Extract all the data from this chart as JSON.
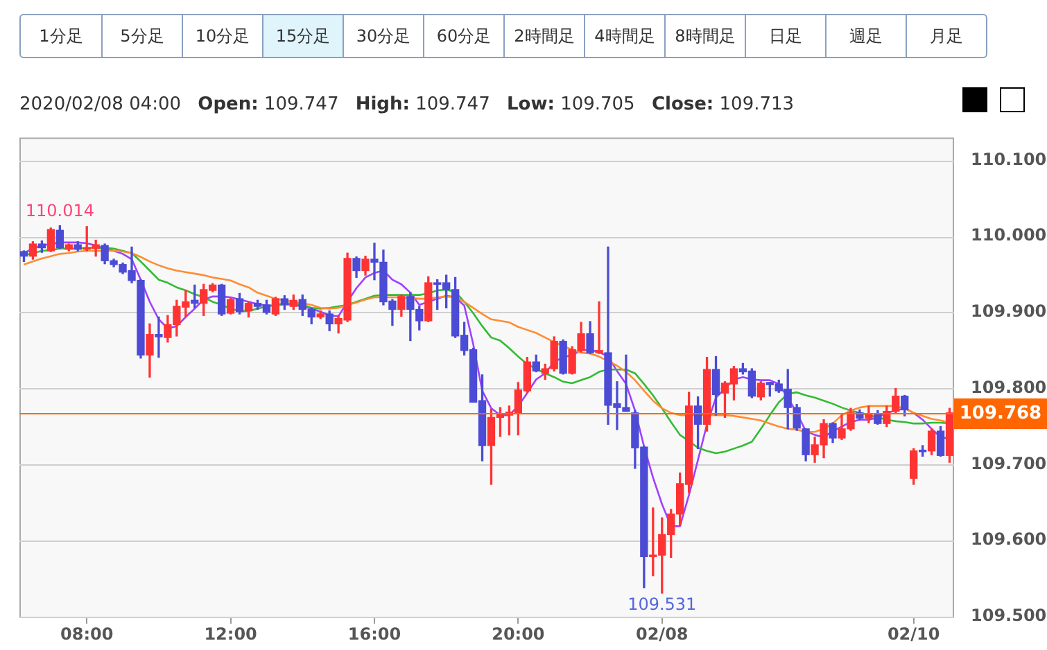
{
  "chart_data": {
    "type": "candlestick",
    "subtitle": "2020/02/08 04:00 Open: 109.747 High: 109.747 Low: 109.705 Close: 109.713",
    "annotations": [
      "1分足",
      "5分足",
      "10分足",
      "15分足",
      "30分足",
      "60分足",
      "2時間足",
      "4時間足",
      "8時間足",
      "日足",
      "週足",
      "月足",
      {
        "text": "110.014",
        "y": 110.014
      },
      {
        "text": "109.531",
        "y": 109.531
      }
    ],
    "categories": [
      null,
      null,
      null,
      null,
      null,
      null,
      null,
      "08:00",
      null,
      null,
      null,
      null,
      null,
      null,
      null,
      null,
      null,
      null,
      null,
      null,
      null,
      null,
      null,
      "12:00",
      null,
      null,
      null,
      null,
      null,
      null,
      null,
      null,
      null,
      null,
      null,
      null,
      null,
      null,
      null,
      "16:00",
      null,
      null,
      null,
      null,
      null,
      null,
      null,
      null,
      null,
      null,
      null,
      null,
      null,
      null,
      null,
      "20:00",
      null,
      null,
      null,
      null,
      null,
      null,
      null,
      null,
      null,
      null,
      null,
      null,
      null,
      null,
      null,
      "02/08",
      null,
      null,
      null,
      null,
      null,
      null,
      null,
      null,
      null,
      null,
      null,
      null,
      null,
      null,
      null,
      null,
      null,
      null,
      null,
      null,
      null,
      null,
      null,
      null,
      null,
      null,
      null,
      "02/10",
      null,
      null,
      null,
      null
    ],
    "ohlc": [
      [
        109.98,
        109.981,
        109.967,
        109.974
      ],
      [
        109.974,
        109.993,
        109.97,
        109.99
      ],
      [
        109.99,
        109.994,
        109.979,
        109.985
      ],
      [
        109.981,
        110.011,
        109.98,
        110.009
      ],
      [
        110.008,
        110.014,
        109.984,
        109.985
      ],
      [
        109.983,
        109.99,
        109.981,
        109.989
      ],
      [
        109.989,
        109.993,
        109.981,
        109.983
      ],
      [
        109.983,
        110.013,
        109.981,
        109.984
      ],
      [
        109.984,
        109.995,
        109.974,
        109.989
      ],
      [
        109.988,
        109.99,
        109.964,
        109.968
      ],
      [
        109.968,
        109.97,
        109.96,
        109.963
      ],
      [
        109.963,
        109.965,
        109.951,
        109.953
      ],
      [
        109.955,
        109.986,
        109.939,
        109.942
      ],
      [
        109.942,
        109.943,
        109.84,
        109.844
      ],
      [
        109.844,
        109.885,
        109.815,
        109.871
      ],
      [
        109.871,
        109.894,
        109.841,
        109.868
      ],
      [
        109.867,
        109.896,
        109.861,
        109.884
      ],
      [
        109.884,
        109.916,
        109.869,
        109.908
      ],
      [
        109.907,
        109.929,
        109.895,
        109.914
      ],
      [
        109.916,
        109.936,
        109.906,
        109.912
      ],
      [
        109.912,
        109.937,
        109.896,
        109.93
      ],
      [
        109.929,
        109.938,
        109.927,
        109.936
      ],
      [
        109.936,
        109.937,
        109.896,
        109.898
      ],
      [
        109.899,
        109.919,
        109.898,
        109.917
      ],
      [
        109.918,
        109.925,
        109.898,
        109.901
      ],
      [
        109.902,
        109.914,
        109.894,
        109.912
      ],
      [
        109.912,
        109.916,
        109.904,
        109.908
      ],
      [
        109.91,
        109.916,
        109.898,
        109.9
      ],
      [
        109.898,
        109.92,
        109.896,
        109.918
      ],
      [
        109.918,
        109.922,
        109.904,
        109.91
      ],
      [
        109.908,
        109.923,
        109.904,
        109.916
      ],
      [
        109.917,
        109.923,
        109.896,
        109.904
      ],
      [
        109.904,
        109.906,
        109.885,
        109.894
      ],
      [
        109.894,
        109.902,
        109.892,
        109.898
      ],
      [
        109.898,
        109.902,
        109.876,
        109.885
      ],
      [
        109.885,
        109.896,
        109.873,
        109.892
      ],
      [
        109.89,
        109.978,
        109.888,
        109.971
      ],
      [
        109.971,
        109.973,
        109.946,
        109.955
      ],
      [
        109.955,
        109.974,
        109.949,
        109.97
      ],
      [
        109.97,
        109.991,
        109.943,
        109.966
      ],
      [
        109.966,
        109.982,
        109.91,
        109.914
      ],
      [
        109.915,
        109.917,
        109.883,
        109.904
      ],
      [
        109.904,
        109.923,
        109.895,
        109.921
      ],
      [
        109.921,
        109.926,
        109.863,
        109.904
      ],
      [
        109.904,
        109.908,
        109.877,
        109.889
      ],
      [
        109.889,
        109.947,
        109.888,
        109.939
      ],
      [
        109.939,
        109.943,
        109.904,
        109.937
      ],
      [
        109.939,
        109.949,
        109.906,
        109.93
      ],
      [
        109.93,
        109.946,
        109.867,
        109.869
      ],
      [
        109.87,
        109.887,
        109.844,
        109.85
      ],
      [
        109.851,
        109.853,
        109.782,
        109.782
      ],
      [
        109.784,
        109.818,
        109.705,
        109.725
      ],
      [
        109.725,
        109.773,
        109.674,
        109.762
      ],
      [
        109.762,
        109.775,
        109.737,
        109.767
      ],
      [
        109.765,
        109.777,
        109.739,
        109.769
      ],
      [
        109.768,
        109.808,
        109.739,
        109.798
      ],
      [
        109.797,
        109.841,
        109.795,
        109.835
      ],
      [
        109.835,
        109.844,
        109.822,
        109.823
      ],
      [
        109.82,
        109.832,
        109.812,
        109.826
      ],
      [
        109.826,
        109.868,
        109.823,
        109.862
      ],
      [
        109.862,
        109.864,
        109.819,
        109.82
      ],
      [
        109.82,
        109.855,
        109.819,
        109.851
      ],
      [
        109.85,
        109.887,
        109.848,
        109.872
      ],
      [
        109.872,
        109.888,
        109.846,
        109.847
      ],
      [
        109.847,
        109.914,
        109.846,
        109.85
      ],
      [
        109.847,
        109.986,
        109.753,
        109.778
      ],
      [
        109.78,
        109.809,
        109.746,
        109.775
      ],
      [
        109.775,
        109.844,
        109.77,
        109.77
      ],
      [
        109.768,
        109.771,
        109.695,
        109.722
      ],
      [
        109.723,
        109.724,
        109.538,
        109.579
      ],
      [
        109.579,
        109.643,
        109.554,
        109.581
      ],
      [
        109.581,
        109.63,
        109.531,
        109.608
      ],
      [
        109.608,
        109.641,
        109.578,
        109.635
      ],
      [
        109.635,
        109.689,
        109.62,
        109.675
      ],
      [
        109.674,
        109.795,
        109.663,
        109.777
      ],
      [
        109.777,
        109.789,
        109.721,
        109.753
      ],
      [
        109.753,
        109.841,
        109.744,
        109.825
      ],
      [
        109.825,
        109.842,
        109.765,
        109.792
      ],
      [
        109.794,
        109.809,
        109.762,
        109.807
      ],
      [
        109.806,
        109.829,
        109.785,
        109.826
      ],
      [
        109.826,
        109.833,
        109.819,
        109.822
      ],
      [
        109.823,
        109.826,
        109.788,
        109.79
      ],
      [
        109.789,
        109.809,
        109.785,
        109.807
      ],
      [
        109.808,
        109.808,
        109.79,
        109.805
      ],
      [
        109.806,
        109.811,
        109.795,
        109.797
      ],
      [
        109.799,
        109.825,
        109.747,
        109.775
      ],
      [
        109.775,
        109.779,
        109.745,
        109.748
      ],
      [
        109.747,
        109.747,
        109.705,
        109.713
      ],
      [
        109.713,
        109.736,
        109.703,
        109.726
      ],
      [
        109.726,
        109.759,
        109.709,
        109.754
      ],
      [
        109.754,
        109.755,
        109.729,
        109.735
      ],
      [
        109.735,
        109.765,
        109.733,
        109.747
      ],
      [
        109.747,
        109.774,
        109.745,
        109.768
      ],
      [
        109.768,
        109.772,
        109.759,
        109.761
      ],
      [
        109.761,
        109.777,
        109.755,
        109.767
      ],
      [
        109.767,
        109.771,
        109.753,
        109.754
      ],
      [
        109.754,
        109.777,
        109.75,
        109.77
      ],
      [
        109.77,
        109.8,
        109.768,
        109.79
      ],
      [
        109.79,
        109.791,
        109.764,
        109.772
      ],
      [
        109.682,
        109.721,
        109.674,
        109.718
      ],
      [
        109.719,
        109.725,
        109.711,
        109.717
      ],
      [
        109.718,
        109.747,
        109.713,
        109.744
      ],
      [
        109.744,
        109.75,
        109.711,
        109.712
      ],
      [
        109.712,
        109.774,
        109.703,
        109.768
      ]
    ],
    "colors": [
      "#4b4bd6",
      "#ff3333",
      "#4b4bd6",
      "#ff3333",
      "#4b4bd6",
      "#ff3333",
      "#4b4bd6",
      "#ff3333",
      "#ff3333",
      "#4b4bd6",
      "#4b4bd6",
      "#4b4bd6",
      "#4b4bd6",
      "#4b4bd6",
      "#ff3333",
      "#4b4bd6",
      "#ff3333",
      "#ff3333",
      "#ff3333",
      "#4b4bd6",
      "#ff3333",
      "#ff3333",
      "#4b4bd6",
      "#ff3333",
      "#4b4bd6",
      "#ff3333",
      "#4b4bd6",
      "#4b4bd6",
      "#ff3333",
      "#4b4bd6",
      "#ff3333",
      "#4b4bd6",
      "#4b4bd6",
      "#ff3333",
      "#4b4bd6",
      "#ff3333",
      "#ff3333",
      "#4b4bd6",
      "#ff3333",
      "#4b4bd6",
      "#4b4bd6",
      "#4b4bd6",
      "#ff3333",
      "#4b4bd6",
      "#4b4bd6",
      "#ff3333",
      "#4b4bd6",
      "#4b4bd6",
      "#4b4bd6",
      "#4b4bd6",
      "#4b4bd6",
      "#4b4bd6",
      "#ff3333",
      "#ff3333",
      "#ff3333",
      "#ff3333",
      "#ff3333",
      "#4b4bd6",
      "#ff3333",
      "#ff3333",
      "#4b4bd6",
      "#ff3333",
      "#ff3333",
      "#4b4bd6",
      "#ff3333",
      "#4b4bd6",
      "#4b4bd6",
      "#4b4bd6",
      "#4b4bd6",
      "#4b4bd6",
      "#ff3333",
      "#ff3333",
      "#ff3333",
      "#ff3333",
      "#ff3333",
      "#4b4bd6",
      "#ff3333",
      "#4b4bd6",
      "#ff3333",
      "#ff3333",
      "#4b4bd6",
      "#4b4bd6",
      "#ff3333",
      "#4b4bd6",
      "#4b4bd6",
      "#4b4bd6",
      "#4b4bd6",
      "#4b4bd6",
      "#ff3333",
      "#ff3333",
      "#4b4bd6",
      "#ff3333",
      "#ff3333",
      "#4b4bd6",
      "#ff3333",
      "#4b4bd6",
      "#ff3333",
      "#ff3333",
      "#4b4bd6",
      "#ff3333",
      "#4b4bd6",
      "#ff3333",
      "#4b4bd6",
      "#ff3333"
    ],
    "series": [
      {
        "type": "line",
        "color": "#ff8c33",
        "values": [
          109.963,
          109.967,
          109.971,
          109.974,
          109.977,
          109.978,
          109.98,
          109.981,
          109.981,
          109.981,
          109.981,
          109.98,
          109.978,
          109.973,
          109.967,
          109.962,
          109.958,
          109.955,
          109.953,
          109.951,
          109.949,
          109.946,
          109.944,
          109.942,
          109.937,
          109.933,
          109.926,
          109.922,
          109.918,
          109.916,
          109.914,
          109.912,
          109.91,
          109.906,
          109.905,
          109.906,
          109.91,
          109.913,
          109.917,
          109.92,
          109.92,
          109.92,
          109.92,
          109.919,
          109.918,
          109.918,
          109.92,
          109.921,
          109.92,
          109.914,
          109.906,
          109.898,
          109.891,
          109.889,
          109.887,
          109.881,
          109.877,
          109.873,
          109.867,
          109.861,
          109.856,
          109.851,
          109.847,
          109.846,
          109.842,
          109.836,
          109.83,
          109.822,
          109.811,
          109.797,
          109.784,
          109.774,
          109.768,
          109.765,
          109.765,
          109.765,
          109.765,
          109.765,
          109.765,
          109.764,
          109.762,
          109.76,
          109.758,
          109.754,
          109.75,
          109.747,
          109.746,
          109.743,
          109.743,
          109.747,
          109.754,
          109.765,
          109.771,
          109.775,
          109.777,
          109.777,
          109.777,
          109.777,
          109.774,
          109.768,
          109.764,
          109.76,
          109.758,
          109.755
        ]
      },
      {
        "type": "line",
        "color": "#33bb33",
        "values": [
          109.975,
          109.978,
          109.981,
          109.982,
          109.984,
          109.984,
          109.984,
          109.985,
          109.985,
          109.985,
          109.984,
          109.981,
          109.978,
          109.967,
          109.955,
          109.943,
          109.939,
          109.933,
          109.929,
          109.924,
          109.92,
          109.914,
          109.91,
          109.905,
          109.902,
          109.902,
          109.905,
          109.908,
          109.91,
          109.912,
          109.912,
          109.91,
          109.906,
          109.905,
          109.906,
          109.908,
          109.91,
          109.914,
          109.918,
          109.922,
          109.923,
          109.923,
          109.923,
          109.923,
          109.923,
          109.925,
          109.929,
          109.93,
          109.927,
          109.914,
          109.899,
          109.882,
          109.867,
          109.863,
          109.853,
          109.842,
          109.832,
          109.826,
          109.82,
          109.815,
          109.809,
          109.807,
          109.811,
          109.815,
          109.822,
          109.825,
          109.825,
          109.825,
          109.82,
          109.806,
          109.791,
          109.774,
          109.756,
          109.739,
          109.731,
          109.722,
          109.718,
          109.715,
          109.717,
          109.721,
          109.725,
          109.73,
          109.747,
          109.765,
          109.782,
          109.793,
          109.795,
          109.791,
          109.788,
          109.784,
          109.78,
          109.775,
          109.771,
          109.768,
          109.765,
          109.762,
          109.759,
          109.757,
          109.756,
          109.754,
          109.754,
          109.755,
          109.755,
          109.754
        ]
      },
      {
        "type": "line",
        "color": "#a040ff",
        "values": [
          109.978,
          109.984,
          109.988,
          109.99,
          109.992,
          109.992,
          109.992,
          109.991,
          109.988,
          109.984,
          109.981,
          109.977,
          109.97,
          109.943,
          109.914,
          109.891,
          109.879,
          109.882,
          109.894,
          109.905,
          109.917,
          109.921,
          109.921,
          109.92,
          109.917,
          109.914,
          109.911,
          109.909,
          109.909,
          109.911,
          109.91,
          109.908,
          109.905,
          109.901,
          109.896,
          109.895,
          109.914,
          109.932,
          109.946,
          109.952,
          109.955,
          109.943,
          109.937,
          109.926,
          109.91,
          109.914,
          109.918,
          109.922,
          109.92,
          109.909,
          109.858,
          109.797,
          109.774,
          109.765,
          109.765,
          109.777,
          109.794,
          109.812,
          109.82,
          109.835,
          109.841,
          109.844,
          109.85,
          109.851,
          109.848,
          109.842,
          109.823,
          109.806,
          109.771,
          109.724,
          109.683,
          109.648,
          109.619,
          109.619,
          109.66,
          109.706,
          109.753,
          109.788,
          109.8,
          109.812,
          109.815,
          109.812,
          109.811,
          109.811,
          109.806,
          109.788,
          109.768,
          109.744,
          109.739,
          109.736,
          109.744,
          109.75,
          109.756,
          109.759,
          109.759,
          109.762,
          109.768,
          109.771,
          109.774,
          109.768,
          109.759,
          109.747,
          109.736,
          109.734
        ]
      }
    ],
    "ylim": [
      109.5,
      110.13
    ],
    "yticks": [
      {
        "value": 109.5,
        "label": "109.500"
      },
      {
        "value": 109.6,
        "label": "109.600"
      },
      {
        "value": 109.7,
        "label": "109.700"
      },
      {
        "value": 109.8,
        "label": "109.800"
      },
      {
        "value": 109.9,
        "label": "109.900"
      },
      {
        "value": 110.0,
        "label": "110.000"
      },
      {
        "value": 110.1,
        "label": "110.100"
      }
    ],
    "ref_lines": [
      {
        "axis": "y",
        "value": 109.768,
        "label": "109.768",
        "color": "#ff6600"
      }
    ],
    "grid": "y"
  }
}
